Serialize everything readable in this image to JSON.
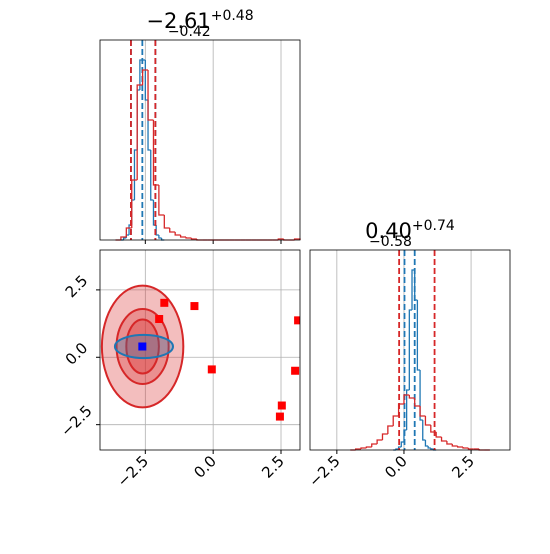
{
  "chart_data": [
    {
      "type": "histogram",
      "title": {
        "main": "−2.61",
        "upper": "+0.48",
        "lower": "−0.42"
      },
      "xlim": [
        -4.17,
        3.2
      ],
      "ylim": [
        0,
        200
      ],
      "xticks": [
        -2.5,
        0,
        2.5
      ],
      "grid": true,
      "series": [
        {
          "color": "#1f77b4",
          "bins": [
            -3.4,
            -3.3,
            -3.2,
            -3.1,
            -3.0,
            -2.9,
            -2.8,
            -2.7,
            -2.6,
            -2.5,
            -2.4,
            -2.3,
            -2.2,
            -2.1,
            -2.0,
            -1.9,
            -1.8
          ],
          "values": [
            0,
            2,
            5,
            15,
            40,
            90,
            150,
            180,
            180,
            140,
            90,
            40,
            15,
            5,
            2,
            0
          ],
          "quantiles": [
            -3.03,
            -2.61,
            -2.13
          ]
        },
        {
          "color": "#d62728",
          "bins": [
            -3.6,
            -3.4,
            -3.2,
            -3.0,
            -2.8,
            -2.6,
            -2.4,
            -2.2,
            -2.0,
            -1.8,
            -1.6,
            -1.4,
            -1.2,
            -1.0,
            -0.8,
            -0.6,
            -0.4,
            -0.2,
            0.0,
            0.2,
            0.4,
            0.6,
            0.8,
            1.0,
            1.2,
            1.4,
            1.6,
            1.8,
            2.0,
            2.2,
            2.4,
            2.6,
            2.8,
            3.0,
            3.2
          ],
          "values": [
            0,
            3,
            12,
            60,
            155,
            170,
            120,
            55,
            25,
            12,
            8,
            5,
            3,
            2,
            1,
            0,
            0,
            0,
            0,
            0,
            0,
            0,
            0,
            0,
            0,
            0,
            0,
            0,
            0,
            0,
            1,
            0,
            0,
            1
          ],
          "quantiles": [
            -3.03,
            -2.13
          ]
        }
      ]
    },
    {
      "type": "scatter",
      "xlim": [
        -4.17,
        3.2
      ],
      "ylim": [
        -3.44,
        3.98
      ],
      "xticks": [
        {
          "value": -2.5,
          "label": "−2.5"
        },
        {
          "value": 0,
          "label": "0.0"
        },
        {
          "value": 2.5,
          "label": "2.5"
        }
      ],
      "yticks": [
        {
          "value": -2.5,
          "label": "−2.5"
        },
        {
          "value": 0,
          "label": "0.0"
        },
        {
          "value": 2.5,
          "label": "2.5"
        }
      ],
      "grid": true,
      "contours": [
        {
          "color": "#d62728",
          "center": [
            -2.6,
            0.4
          ],
          "radii": [
            [
              1.5,
              2.26
            ],
            [
              0.96,
              1.39
            ],
            [
              0.6,
              1.0
            ]
          ]
        },
        {
          "color": "#1f77b4",
          "center": [
            -2.55,
            0.4
          ],
          "radii": [
            [
              1.07,
              0.43
            ]
          ]
        }
      ],
      "series": [
        {
          "color": "#ff0000",
          "x": [
            -1.8,
            -1.99,
            -0.69,
            -0.05,
            2.53,
            2.46,
            3.02,
            3.13
          ],
          "values": [
            2.02,
            1.42,
            1.9,
            -0.45,
            -1.79,
            -2.2,
            -0.5,
            1.37
          ]
        },
        {
          "color": "#0000ff",
          "x": [
            -2.61
          ],
          "values": [
            0.4
          ]
        }
      ]
    },
    {
      "type": "histogram",
      "title": {
        "main": "0.40",
        "upper": "+0.74",
        "lower": "−0.58"
      },
      "xlim": [
        -3.5,
        3.95
      ],
      "ylim": [
        0,
        200
      ],
      "xticks": [
        {
          "value": -2.5,
          "label": "−2.5"
        },
        {
          "value": 0,
          "label": "0.0"
        },
        {
          "value": 2.5,
          "label": "2.5"
        }
      ],
      "grid": true,
      "series": [
        {
          "color": "#1f77b4",
          "bins": [
            -0.4,
            -0.3,
            -0.2,
            -0.1,
            0.0,
            0.1,
            0.2,
            0.3,
            0.4,
            0.5,
            0.6,
            0.7,
            0.8,
            0.9,
            1.0,
            1.1,
            1.2
          ],
          "values": [
            0,
            1,
            3,
            8,
            20,
            60,
            140,
            180,
            150,
            80,
            30,
            10,
            4,
            2,
            1,
            0
          ],
          "quantiles": [
            0.02,
            0.4
          ]
        },
        {
          "color": "#d62728",
          "bins": [
            -2.0,
            -1.8,
            -1.6,
            -1.4,
            -1.2,
            -1.0,
            -0.8,
            -0.6,
            -0.4,
            -0.2,
            0.0,
            0.2,
            0.4,
            0.6,
            0.8,
            1.0,
            1.2,
            1.4,
            1.6,
            1.8,
            2.0,
            2.2,
            2.4,
            2.6,
            2.8,
            3.0,
            3.2
          ],
          "values": [
            0,
            1,
            2,
            3,
            6,
            10,
            16,
            24,
            34,
            46,
            55,
            52,
            44,
            34,
            25,
            18,
            13,
            9,
            6,
            4,
            3,
            2,
            1,
            1,
            0,
            0
          ],
          "quantiles": [
            -0.18,
            1.14
          ]
        }
      ]
    }
  ]
}
